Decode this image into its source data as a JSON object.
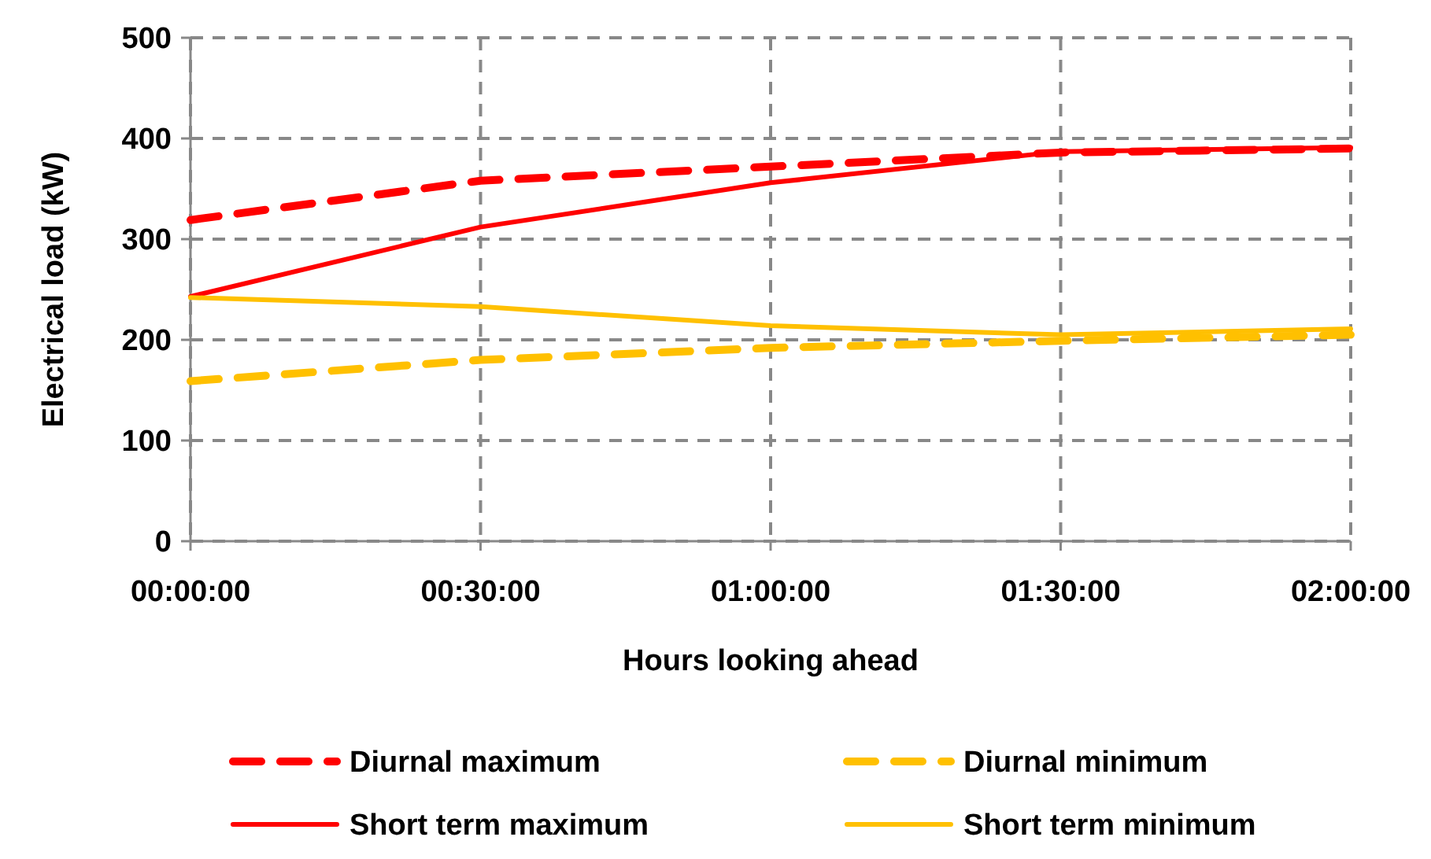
{
  "chart_data": {
    "type": "line",
    "xlabel": "Hours looking ahead",
    "ylabel": "Electrical load (kW)",
    "x": [
      0,
      0.5,
      1,
      1.5,
      2
    ],
    "xlim": [
      0,
      2
    ],
    "xticks": [
      {
        "value": 0,
        "label": "00:00:00"
      },
      {
        "value": 0.5,
        "label": "00:30:00"
      },
      {
        "value": 1,
        "label": "01:00:00"
      },
      {
        "value": 1.5,
        "label": "01:30:00"
      },
      {
        "value": 2,
        "label": "02:00:00"
      }
    ],
    "ylim": [
      0,
      500
    ],
    "yticks": [
      0,
      100,
      200,
      300,
      400,
      500
    ],
    "grid": true,
    "legend": "bottom",
    "series": [
      {
        "name": "Diurnal maximum",
        "color": "#ff0000",
        "line_style": "dashed",
        "values": [
          319,
          358,
          372,
          386,
          390
        ]
      },
      {
        "name": "Diurnal minimum",
        "color": "#ffc000",
        "line_style": "dashed",
        "values": [
          159,
          180,
          192,
          199,
          205
        ]
      },
      {
        "name": "Short term maximum",
        "color": "#ff0000",
        "line_style": "solid",
        "values": [
          243,
          312,
          356,
          387,
          391
        ]
      },
      {
        "name": "Short term minimum",
        "color": "#ffc000",
        "line_style": "solid",
        "values": [
          242,
          233,
          214,
          205,
          211
        ]
      }
    ]
  }
}
